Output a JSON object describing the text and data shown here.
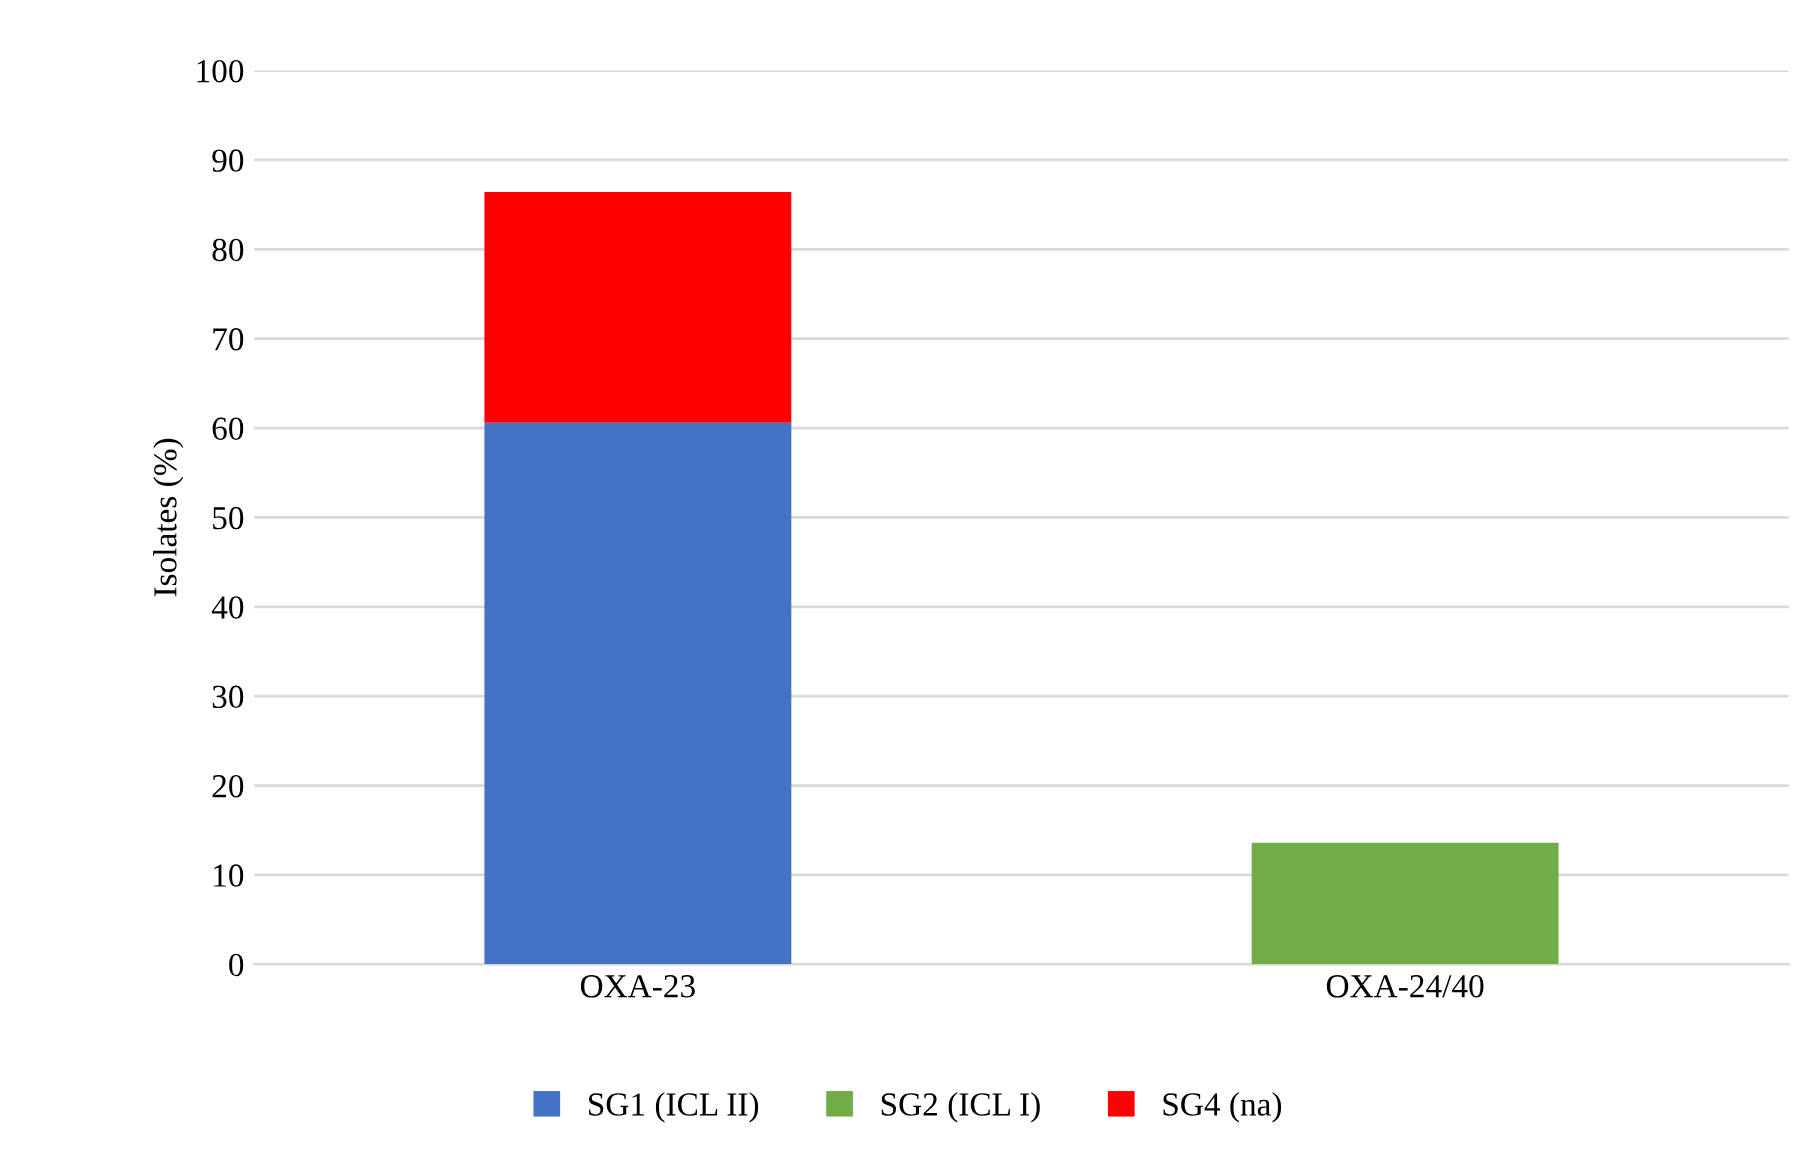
{
  "chart_data": {
    "type": "bar",
    "stacked": true,
    "ylabel": "Isolates (%)",
    "categories": [
      "OXA-23",
      "OXA-24/40"
    ],
    "series": [
      {
        "name": "SG1 (ICL II)",
        "color": "#4472c4",
        "values": [
          60.6,
          0
        ]
      },
      {
        "name": "SG2 (ICL I)",
        "color": "#70ad47",
        "values": [
          0,
          13.6
        ]
      },
      {
        "name": "SG4 (na)",
        "color": "#ff0000",
        "values": [
          25.8,
          0
        ]
      }
    ],
    "ylim": [
      0,
      100
    ],
    "yticks": [
      0,
      10,
      20,
      30,
      40,
      50,
      60,
      70,
      80,
      90,
      100
    ],
    "grid": "y",
    "legend": "bottom"
  }
}
